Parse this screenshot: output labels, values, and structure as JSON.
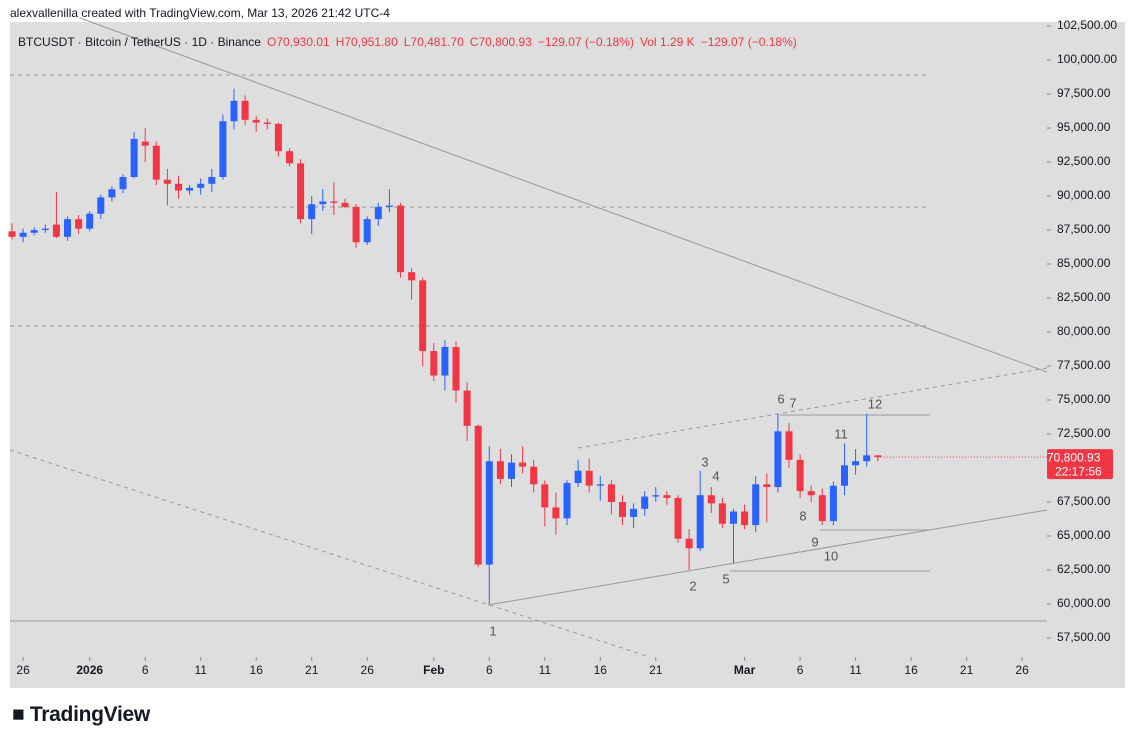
{
  "header": {
    "attribution": "alexvallenilla created with TradingView.com, Mar 13, 2026 21:42 UTC-4"
  },
  "chart_data": {
    "type": "candlestick",
    "symbol": "BTCUSDT · Bitcoin / TetherUS · 1D · Binance",
    "legend_values": [
      "O70,930.01",
      "H70,951.80",
      "L70,481.70",
      "C70,800.93",
      "−129.07 (−0.18%)",
      "Vol 1.29 K",
      "−129.07 (−0.18%)"
    ],
    "categories": [
      "2025-12-25",
      "2025-12-26",
      "2025-12-27",
      "2025-12-28",
      "2025-12-29",
      "2025-12-30",
      "2025-12-31",
      "2026-01-01",
      "2026-01-02",
      "2026-01-03",
      "2026-01-04",
      "2026-01-05",
      "2026-01-06",
      "2026-01-07",
      "2026-01-08",
      "2026-01-09",
      "2026-01-10",
      "2026-01-11",
      "2026-01-12",
      "2026-01-13",
      "2026-01-14",
      "2026-01-15",
      "2026-01-16",
      "2026-01-17",
      "2026-01-18",
      "2026-01-19",
      "2026-01-20",
      "2026-01-21",
      "2026-01-22",
      "2026-01-23",
      "2026-01-24",
      "2026-01-25",
      "2026-01-26",
      "2026-01-27",
      "2026-01-28",
      "2026-01-29",
      "2026-01-30",
      "2026-01-31",
      "2026-02-01",
      "2026-02-02",
      "2026-02-03",
      "2026-02-04",
      "2026-02-05",
      "2026-02-06",
      "2026-02-07",
      "2026-02-08",
      "2026-02-09",
      "2026-02-10",
      "2026-02-11",
      "2026-02-12",
      "2026-02-13",
      "2026-02-14",
      "2026-02-15",
      "2026-02-16",
      "2026-02-17",
      "2026-02-18",
      "2026-02-19",
      "2026-02-20",
      "2026-02-21",
      "2026-02-22",
      "2026-02-23",
      "2026-02-24",
      "2026-02-25",
      "2026-02-26",
      "2026-02-27",
      "2026-02-28",
      "2026-03-01",
      "2026-03-02",
      "2026-03-03",
      "2026-03-04",
      "2026-03-05",
      "2026-03-06",
      "2026-03-07",
      "2026-03-08",
      "2026-03-09",
      "2026-03-10",
      "2026-03-11",
      "2026-03-12",
      "2026-03-13"
    ],
    "open": [
      87400,
      87000,
      87300,
      87500,
      87900,
      87000,
      88300,
      87600,
      88700,
      89900,
      90500,
      91400,
      94000,
      93700,
      91200,
      90900,
      90400,
      90600,
      90900,
      91400,
      95500,
      97000,
      95600,
      95400,
      95300,
      93300,
      92400,
      88300,
      89400,
      89600,
      89500,
      89200,
      86600,
      88300,
      89200,
      89300,
      84400,
      83800,
      78600,
      76800,
      78900,
      75700,
      73100,
      62900,
      70500,
      69200,
      70400,
      70100,
      68800,
      67100,
      66300,
      68900,
      69800,
      68700,
      68800,
      67500,
      66400,
      67000,
      67900,
      68000,
      67800,
      64800,
      64100,
      68000,
      67400,
      65900,
      66800,
      65800,
      68800,
      68600,
      72700,
      70600,
      68300,
      68000,
      66100,
      68700,
      70200,
      70500,
      70930.01
    ],
    "high": [
      88000,
      87600,
      87700,
      87900,
      90300,
      88500,
      88600,
      88900,
      90100,
      90700,
      91600,
      94700,
      95000,
      94000,
      92000,
      91500,
      90800,
      91300,
      92000,
      96000,
      97900,
      97400,
      95900,
      95700,
      95400,
      93500,
      92700,
      90000,
      90500,
      91000,
      89800,
      89400,
      88500,
      89500,
      90500,
      89500,
      84700,
      84000,
      79200,
      79400,
      79300,
      76300,
      73200,
      71600,
      71400,
      71000,
      71600,
      70600,
      69100,
      68200,
      69100,
      70600,
      70700,
      69400,
      69100,
      68000,
      67400,
      68300,
      68600,
      68300,
      68000,
      65500,
      69800,
      68600,
      67800,
      67000,
      67300,
      69400,
      69600,
      74000,
      73300,
      71000,
      68700,
      68500,
      69000,
      71800,
      71400,
      74000,
      70951.8
    ],
    "low": [
      86800,
      86600,
      87100,
      87300,
      86900,
      86700,
      87200,
      87400,
      88300,
      89600,
      90200,
      91300,
      92500,
      90800,
      89300,
      89800,
      90100,
      90100,
      90300,
      91200,
      94900,
      95200,
      94700,
      94900,
      92900,
      92200,
      88000,
      87200,
      88900,
      88600,
      89100,
      86200,
      86400,
      87800,
      88800,
      84000,
      82400,
      77500,
      76400,
      75700,
      74800,
      72000,
      62700,
      60000,
      68800,
      68600,
      69600,
      68200,
      65700,
      65100,
      65800,
      68600,
      68200,
      67600,
      66600,
      65800,
      65600,
      66500,
      67500,
      67300,
      64500,
      62500,
      63900,
      66700,
      65600,
      63000,
      65500,
      65300,
      66000,
      68200,
      70000,
      67800,
      67500,
      65800,
      65800,
      68000,
      69500,
      70100,
      70481.7
    ],
    "close": [
      87000,
      87300,
      87500,
      87600,
      87000,
      88300,
      87600,
      88700,
      89900,
      90500,
      91400,
      94200,
      93700,
      91200,
      90900,
      90400,
      90600,
      90900,
      91400,
      95500,
      97000,
      95600,
      95400,
      95300,
      93300,
      92400,
      88300,
      89400,
      89600,
      89500,
      89200,
      86600,
      88300,
      89200,
      89300,
      84400,
      83800,
      78600,
      76800,
      78900,
      75700,
      73100,
      62900,
      70500,
      69200,
      70400,
      70100,
      68800,
      67100,
      66300,
      68900,
      69800,
      68700,
      68800,
      67500,
      66400,
      67000,
      67900,
      68000,
      67800,
      64800,
      64100,
      68000,
      67400,
      65900,
      66800,
      65800,
      68800,
      68600,
      72700,
      70600,
      68300,
      68000,
      66100,
      68700,
      70200,
      70500,
      70930,
      70800.93
    ],
    "up_color": "#2962ff",
    "down_color": "#f23645",
    "ylim": [
      56250,
      103090
    ],
    "yticks": [
      {
        "value": 57500,
        "label": "57,500.00"
      },
      {
        "value": 60000,
        "label": "60,000.00"
      },
      {
        "value": 62500,
        "label": "62,500.00"
      },
      {
        "value": 65000,
        "label": "65,000.00"
      },
      {
        "value": 67500,
        "label": "67,500.00"
      },
      {
        "value": 70000,
        "label": "70,000.00"
      },
      {
        "value": 72500,
        "label": "72,500.00"
      },
      {
        "value": 75000,
        "label": "75,000.00"
      },
      {
        "value": 77500,
        "label": "77,500.00"
      },
      {
        "value": 80000,
        "label": "80,000.00"
      },
      {
        "value": 82500,
        "label": "82,500.00"
      },
      {
        "value": 85000,
        "label": "85,000.00"
      },
      {
        "value": 87500,
        "label": "87,500.00"
      },
      {
        "value": 90000,
        "label": "90,000.00"
      },
      {
        "value": 92500,
        "label": "92,500.00"
      },
      {
        "value": 95000,
        "label": "95,000.00"
      },
      {
        "value": 97500,
        "label": "97,500.00"
      },
      {
        "value": 100000,
        "label": "100,000.00"
      },
      {
        "value": 102500,
        "label": "102,500.00"
      }
    ],
    "xticks": [
      {
        "value": "2025-12-26",
        "label": "26"
      },
      {
        "value": "2026-01-01",
        "label": "2026"
      },
      {
        "value": "2026-01-06",
        "label": "6"
      },
      {
        "value": "2026-01-11",
        "label": "11"
      },
      {
        "value": "2026-01-16",
        "label": "16"
      },
      {
        "value": "2026-01-21",
        "label": "21"
      },
      {
        "value": "2026-01-26",
        "label": "26"
      },
      {
        "value": "2026-02-01",
        "label": "Feb"
      },
      {
        "value": "2026-02-06",
        "label": "6"
      },
      {
        "value": "2026-02-11",
        "label": "11"
      },
      {
        "value": "2026-02-16",
        "label": "16"
      },
      {
        "value": "2026-02-21",
        "label": "21"
      },
      {
        "value": "2026-03-01",
        "label": "Mar"
      },
      {
        "value": "2026-03-06",
        "label": "6"
      },
      {
        "value": "2026-03-11",
        "label": "11"
      },
      {
        "value": "2026-03-16",
        "label": "16"
      },
      {
        "value": "2026-03-21",
        "label": "21"
      },
      {
        "value": "2026-03-26",
        "label": "26"
      }
    ],
    "last_price_label": "70,800.93",
    "countdown": "22:17:56",
    "annotations": [
      "1",
      "2",
      "3",
      "4",
      "5",
      "6",
      "7",
      "8",
      "9",
      "10",
      "11",
      "12"
    ]
  },
  "footer": {
    "brand": "TradingView"
  }
}
